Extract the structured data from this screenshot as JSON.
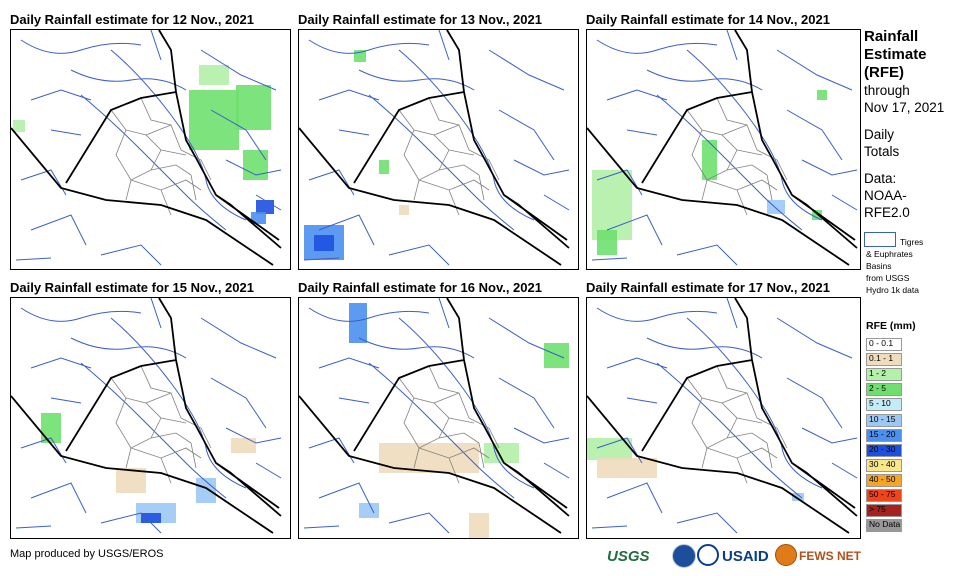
{
  "panels": [
    {
      "title": "Daily Rainfall estimate for 12 Nov., 2021"
    },
    {
      "title": "Daily Rainfall estimate for 13 Nov., 2021"
    },
    {
      "title": "Daily Rainfall estimate for 14 Nov., 2021"
    },
    {
      "title": "Daily Rainfall estimate for 15 Nov., 2021"
    },
    {
      "title": "Daily Rainfall estimate for 16 Nov., 2021"
    },
    {
      "title": "Daily Rainfall estimate for 17 Nov., 2021"
    }
  ],
  "sidebar": {
    "title_lines": [
      "Rainfall",
      "Estimate",
      "(RFE)"
    ],
    "through_label": "through",
    "through_date": "Nov 17, 2021",
    "daily_lines": [
      "Daily",
      "Totals"
    ],
    "data_lines": [
      "Data:",
      "NOAA-",
      "RFE2.0"
    ],
    "basin_lines": [
      "Tigres",
      "& Euphrates",
      "Basins",
      "from USGS",
      "Hydro 1k data"
    ]
  },
  "legend": {
    "title": "RFE (mm)",
    "items": [
      {
        "label": "0 - 0.1",
        "color": "#ffffff"
      },
      {
        "label": "0.1 - 1",
        "color": "#eedcbc"
      },
      {
        "label": "1 - 2",
        "color": "#b3f0a8"
      },
      {
        "label": "2 - 5",
        "color": "#6fe06f"
      },
      {
        "label": "5 - 10",
        "color": "#c3ecf7"
      },
      {
        "label": "10 - 15",
        "color": "#9cc8f5"
      },
      {
        "label": "15 - 20",
        "color": "#4b8ff0"
      },
      {
        "label": "20 - 30",
        "color": "#1e50e0"
      },
      {
        "label": "30 - 40",
        "color": "#fae68a"
      },
      {
        "label": "40 - 50",
        "color": "#f5a623"
      },
      {
        "label": "50 - 75",
        "color": "#f0441a"
      },
      {
        "label": "> 75",
        "color": "#a5231f"
      },
      {
        "label": "No Data",
        "color": "#999999"
      }
    ]
  },
  "footer": {
    "credit": "Map produced by USGS/EROS",
    "logo_usgs": "USGS",
    "logo_usaid": "USAID",
    "logo_fews": "FEWS NET"
  },
  "colors": {
    "border": "#000000",
    "admin": "#808080",
    "rivers": "#3b5fc8"
  }
}
